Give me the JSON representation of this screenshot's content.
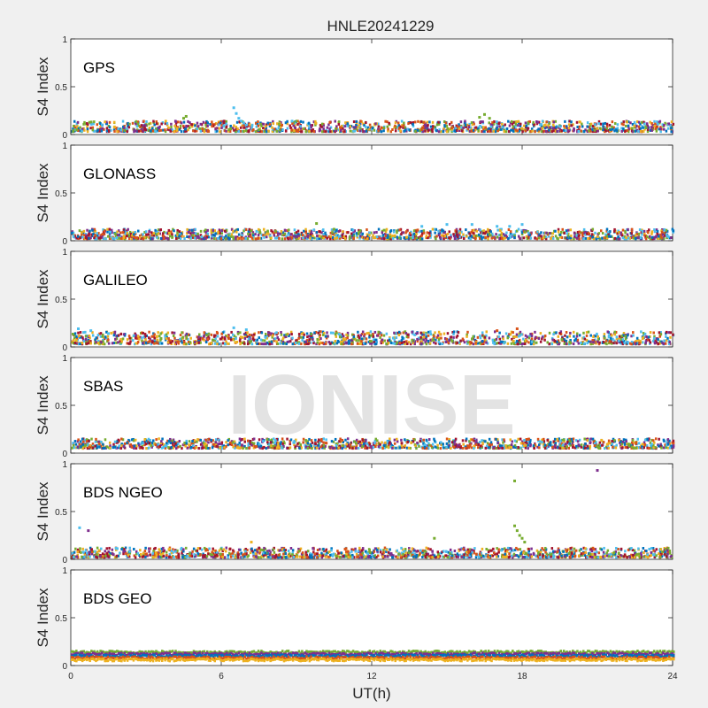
{
  "figure_title": "HNLE20241229",
  "watermark": "IONISE",
  "xlabel": "UT(h)",
  "ylabel": "S4 Index",
  "xticks": [
    "0",
    "6",
    "12",
    "18",
    "24"
  ],
  "yticks": [
    "0",
    "0.5",
    "1"
  ],
  "colors": {
    "series": [
      "#0072BD",
      "#D95319",
      "#EDB120",
      "#7E2F8E",
      "#77AC30",
      "#4DBEEE",
      "#A2142F"
    ],
    "axes_bg": "#ffffff",
    "figure_bg": "#f0f0f0",
    "watermark": "#d9d9d9"
  },
  "chart_data": [
    {
      "type": "scatter",
      "title": "GPS",
      "xlim": [
        0,
        24
      ],
      "ylim": [
        0,
        1
      ],
      "baseline_range": [
        0.03,
        0.14
      ],
      "notes": "dense low scatter across all satellites; brief rise to ~0.28 near 6.7 h",
      "highlights": [
        {
          "x": [
            6.5,
            6.6,
            6.7,
            6.8,
            6.9,
            7.0
          ],
          "y": [
            0.28,
            0.22,
            0.17,
            0.14,
            0.12,
            0.1
          ],
          "series": 5
        },
        {
          "x": [
            16.3,
            16.5,
            16.7
          ],
          "y": [
            0.18,
            0.21,
            0.17
          ],
          "series": 4
        },
        {
          "x": [
            4.5,
            4.6
          ],
          "y": [
            0.17,
            0.19
          ],
          "series": 4
        }
      ]
    },
    {
      "type": "scatter",
      "title": "GLONASS",
      "xlim": [
        0,
        24
      ],
      "ylim": [
        0,
        1
      ],
      "baseline_range": [
        0.02,
        0.12
      ],
      "notes": "low values; arc rising to ~0.19 around 16-18 h",
      "highlights": [
        {
          "x": [
            14.0,
            15.0,
            16.0,
            17.0,
            17.5,
            18.0
          ],
          "y": [
            0.15,
            0.17,
            0.17,
            0.15,
            0.15,
            0.17
          ],
          "series": 5
        },
        {
          "x": [
            9.8,
            10.5,
            11.5,
            12.5
          ],
          "y": [
            0.18,
            0.12,
            0.09,
            0.11
          ],
          "series": 4
        }
      ]
    },
    {
      "type": "scatter",
      "title": "GALILEO",
      "xlim": [
        0,
        24
      ],
      "ylim": [
        0,
        1
      ],
      "baseline_range": [
        0.03,
        0.16
      ],
      "notes": "smooth arcs between 0.05 and 0.2",
      "highlights": [
        {
          "x": [
            0.3,
            0.8,
            1.5
          ],
          "y": [
            0.19,
            0.17,
            0.14
          ],
          "series": 5
        },
        {
          "x": [
            6.5,
            7.0
          ],
          "y": [
            0.2,
            0.18
          ],
          "series": 5
        },
        {
          "x": [
            17.0,
            17.8
          ],
          "y": [
            0.17,
            0.19
          ],
          "series": 1
        }
      ]
    },
    {
      "type": "scatter",
      "title": "SBAS",
      "xlim": [
        0,
        24
      ],
      "ylim": [
        0,
        1
      ],
      "baseline_range": [
        0.05,
        0.15
      ],
      "notes": "flat noisy band around 0.1 for all 24 h",
      "highlights": []
    },
    {
      "type": "scatter",
      "title": "BDS NGEO",
      "xlim": [
        0,
        24
      ],
      "ylim": [
        0,
        1
      ],
      "baseline_range": [
        0.02,
        0.12
      ],
      "notes": "low scatter; outliers at ~0.85 and ~0.93; spike to ~0.35 near 17.8 h",
      "highlights": [
        {
          "x": [
            17.7
          ],
          "y": [
            0.82
          ],
          "series": 4
        },
        {
          "x": [
            21.0
          ],
          "y": [
            0.93
          ],
          "series": 3
        },
        {
          "x": [
            0.35
          ],
          "y": [
            0.33
          ],
          "series": 5
        },
        {
          "x": [
            0.7
          ],
          "y": [
            0.3
          ],
          "series": 3
        },
        {
          "x": [
            17.7,
            17.8,
            17.9,
            18.0,
            18.1
          ],
          "y": [
            0.35,
            0.3,
            0.25,
            0.22,
            0.18
          ],
          "series": 4
        },
        {
          "x": [
            7.2
          ],
          "y": [
            0.18
          ],
          "series": 2
        },
        {
          "x": [
            14.5
          ],
          "y": [
            0.22
          ],
          "series": 4
        }
      ]
    },
    {
      "type": "scatter",
      "title": "BDS GEO",
      "xlim": [
        0,
        24
      ],
      "ylim": [
        0,
        1
      ],
      "baseline_range": [
        0.06,
        0.16
      ],
      "notes": "flat parallel bands per satellite between ~0.07 and ~0.15",
      "bands": [
        {
          "y": 0.14,
          "series": 4
        },
        {
          "y": 0.12,
          "series": 3
        },
        {
          "y": 0.1,
          "series": 0
        },
        {
          "y": 0.08,
          "series": 1
        },
        {
          "y": 0.06,
          "series": 2
        }
      ],
      "highlights": []
    }
  ]
}
